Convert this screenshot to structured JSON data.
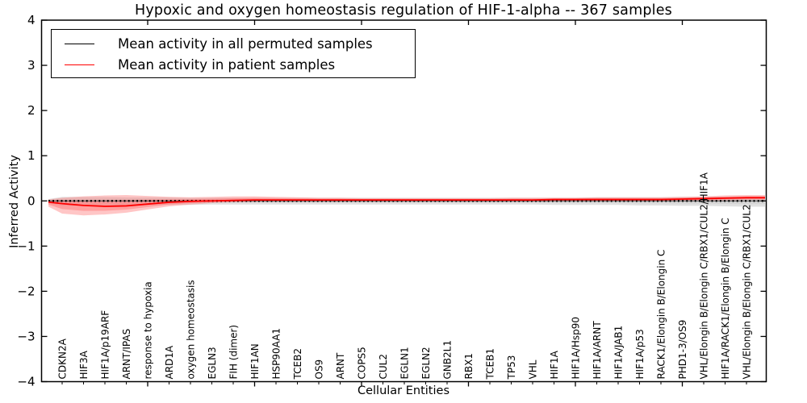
{
  "figure": {
    "title": "Hypoxic and oxygen homeostasis regulation of HIF-1-alpha -- 367 samples",
    "xlabel": "Cellular Entities",
    "ylabel": "Inferred Activity"
  },
  "legend": {
    "items": [
      {
        "label": "Mean activity in all permuted samples",
        "color": "#000000"
      },
      {
        "label": "Mean activity in patient samples",
        "color": "#ff0000"
      }
    ]
  },
  "chart_data": {
    "type": "line",
    "title": "Hypoxic and oxygen homeostasis regulation of HIF-1-alpha -- 367 samples",
    "xlabel": "Cellular Entities",
    "ylabel": "Inferred Activity",
    "ylim": [
      -4,
      4
    ],
    "yticks": [
      -4,
      -3,
      -2,
      -1,
      0,
      1,
      2,
      3,
      4
    ],
    "x_major_tick_every": 5,
    "grid": false,
    "legend_position": "upper left",
    "categories": [
      "CDKN2A",
      "HIF3A",
      "HIF1A/p19ARF",
      "ARNT/IPAS",
      "response to hypoxia",
      "ARD1A",
      "oxygen homeostasis",
      "EGLN3",
      "FIH (dimer)",
      "HIF1AN",
      "HSP90AA1",
      "TCEB2",
      "OS9",
      "ARNT",
      "COPS5",
      "CUL2",
      "EGLN1",
      "EGLN2",
      "GNB2L1",
      "RBX1",
      "TCEB1",
      "TP53",
      "VHL",
      "HIF1A",
      "HIF1A/Hsp90",
      "HIF1A/ARNT",
      "HIF1A/JAB1",
      "HIF1A/p53",
      "RACK1/Elongin B/Elongin C",
      "PHD1-3/OS9",
      "VHL/Elongin B/Elongin C/RBX1/CUL2/HIF1A",
      "HIF1A/RACK1/Elongin B/Elongin C",
      "VHL/Elongin B/Elongin C/RBX1/CUL2"
    ],
    "series": [
      {
        "name": "Mean activity in all permuted samples",
        "color": "#000000",
        "line_style": "dashed",
        "band_color": "#c8c8c8",
        "values": [
          0,
          0,
          0,
          0,
          0,
          0,
          0,
          0,
          0,
          0,
          0,
          0,
          0,
          0,
          0,
          0,
          0,
          0,
          0,
          0,
          0,
          0,
          0,
          0,
          0,
          0,
          0,
          0,
          0,
          0,
          0,
          0,
          0
        ],
        "band_upper": [
          0.09,
          0.09,
          0.09,
          0.08,
          0.08,
          0.08,
          0.07,
          0.07,
          0.07,
          0.07,
          0.07,
          0.07,
          0.07,
          0.07,
          0.07,
          0.07,
          0.07,
          0.07,
          0.07,
          0.07,
          0.07,
          0.07,
          0.07,
          0.07,
          0.07,
          0.08,
          0.08,
          0.08,
          0.08,
          0.09,
          0.09,
          0.1,
          0.1
        ],
        "band_lower": [
          -0.11,
          -0.11,
          -0.1,
          -0.1,
          -0.09,
          -0.09,
          -0.09,
          -0.08,
          -0.08,
          -0.08,
          -0.08,
          -0.08,
          -0.08,
          -0.08,
          -0.08,
          -0.08,
          -0.08,
          -0.08,
          -0.08,
          -0.08,
          -0.08,
          -0.08,
          -0.08,
          -0.09,
          -0.09,
          -0.09,
          -0.09,
          -0.1,
          -0.1,
          -0.11,
          -0.11,
          -0.12,
          -0.13
        ]
      },
      {
        "name": "Mean activity in patient samples",
        "color": "#ff0000",
        "line_style": "solid",
        "band_color": "#ff8080",
        "values": [
          -0.06,
          -0.1,
          -0.12,
          -0.11,
          -0.07,
          -0.03,
          -0.01,
          0.0,
          0.01,
          0.02,
          0.02,
          0.02,
          0.02,
          0.02,
          0.02,
          0.02,
          0.02,
          0.02,
          0.02,
          0.02,
          0.02,
          0.02,
          0.02,
          0.03,
          0.03,
          0.03,
          0.03,
          0.03,
          0.03,
          0.04,
          0.05,
          0.06,
          0.07
        ],
        "band_upper": [
          0.07,
          0.1,
          0.12,
          0.13,
          0.11,
          0.09,
          0.08,
          0.09,
          0.1,
          0.1,
          0.09,
          0.08,
          0.07,
          0.07,
          0.06,
          0.06,
          0.06,
          0.06,
          0.06,
          0.06,
          0.06,
          0.07,
          0.07,
          0.07,
          0.07,
          0.08,
          0.08,
          0.08,
          0.08,
          0.09,
          0.1,
          0.12,
          0.13
        ],
        "band_lower": [
          -0.28,
          -0.32,
          -0.3,
          -0.26,
          -0.19,
          -0.12,
          -0.08,
          -0.05,
          -0.03,
          -0.02,
          -0.02,
          -0.02,
          -0.02,
          -0.02,
          -0.02,
          -0.02,
          -0.02,
          -0.02,
          -0.02,
          -0.02,
          -0.02,
          -0.02,
          -0.02,
          -0.01,
          -0.01,
          -0.01,
          -0.01,
          -0.01,
          -0.01,
          0.0,
          0.0,
          0.01,
          0.02
        ]
      }
    ]
  }
}
